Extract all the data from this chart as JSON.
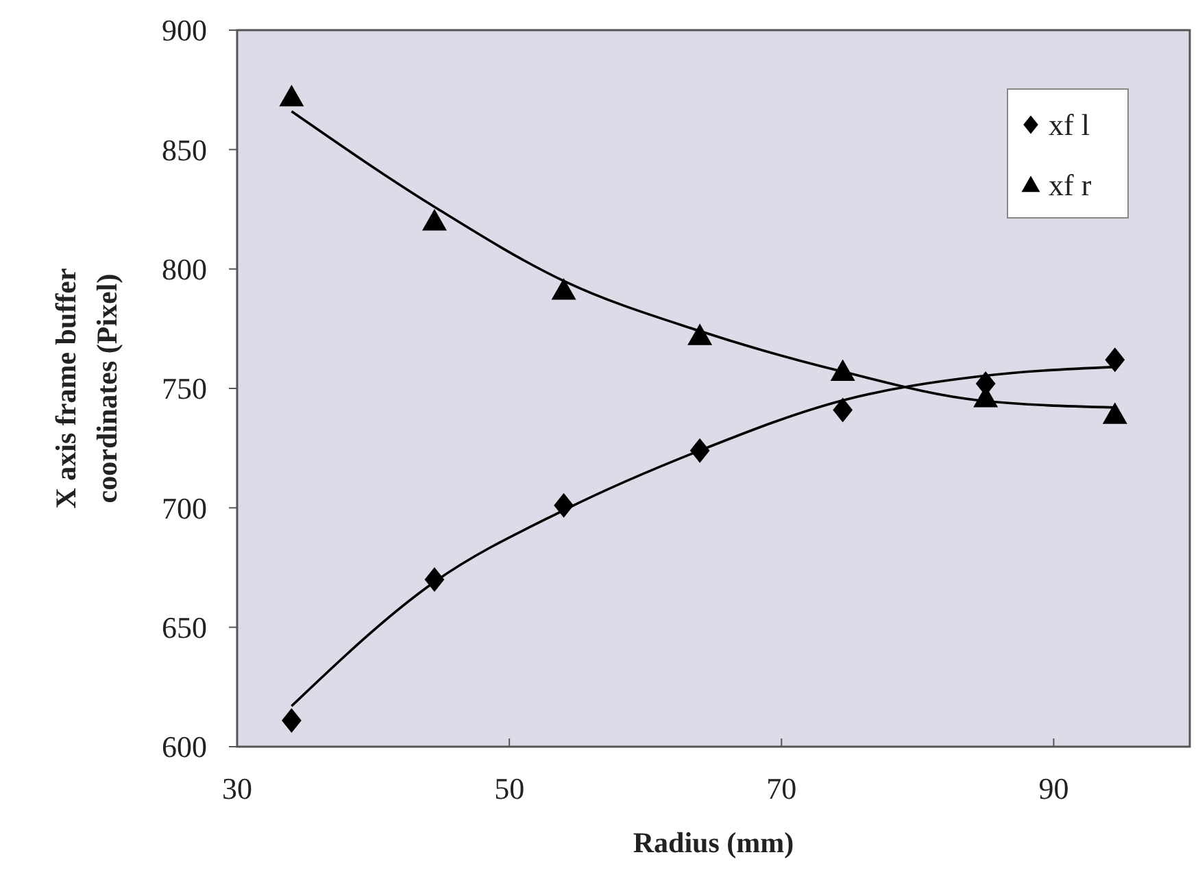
{
  "chart_data": {
    "type": "scatter",
    "xlabel": "Radius (mm)",
    "ylabel": "X axis frame buffer\ncoordinates (Pixel)",
    "x": [
      34,
      44.5,
      54,
      64,
      74.5,
      85,
      94.5
    ],
    "series": [
      {
        "name": "xf l",
        "color": "#000000",
        "marker": "diamond",
        "values": [
          611,
          670,
          701,
          724,
          741,
          752,
          762
        ]
      },
      {
        "name": "xf r",
        "color": "#000000",
        "marker": "triangle",
        "values": [
          872,
          820,
          791,
          772,
          757,
          746,
          739
        ]
      },
      {
        "type": "line",
        "color": "#000000",
        "marker": "none",
        "x": [
          34,
          44.5,
          54,
          64,
          74.5,
          84.5,
          94.5
        ],
        "values": [
          617,
          669,
          699,
          724,
          745,
          755,
          759
        ]
      },
      {
        "type": "line",
        "color": "#000000",
        "marker": "none",
        "x": [
          34,
          44.5,
          54,
          64,
          74.5,
          84.5,
          94.5
        ],
        "values": [
          866,
          826,
          795,
          774,
          757,
          745,
          742
        ]
      }
    ],
    "xlim": [
      30,
      100
    ],
    "xticks": [
      30,
      50,
      70,
      90
    ],
    "ylim": [
      600,
      900
    ],
    "yticks": [
      600,
      650,
      700,
      750,
      800,
      850,
      900
    ],
    "grid": false,
    "legend": "top right"
  }
}
